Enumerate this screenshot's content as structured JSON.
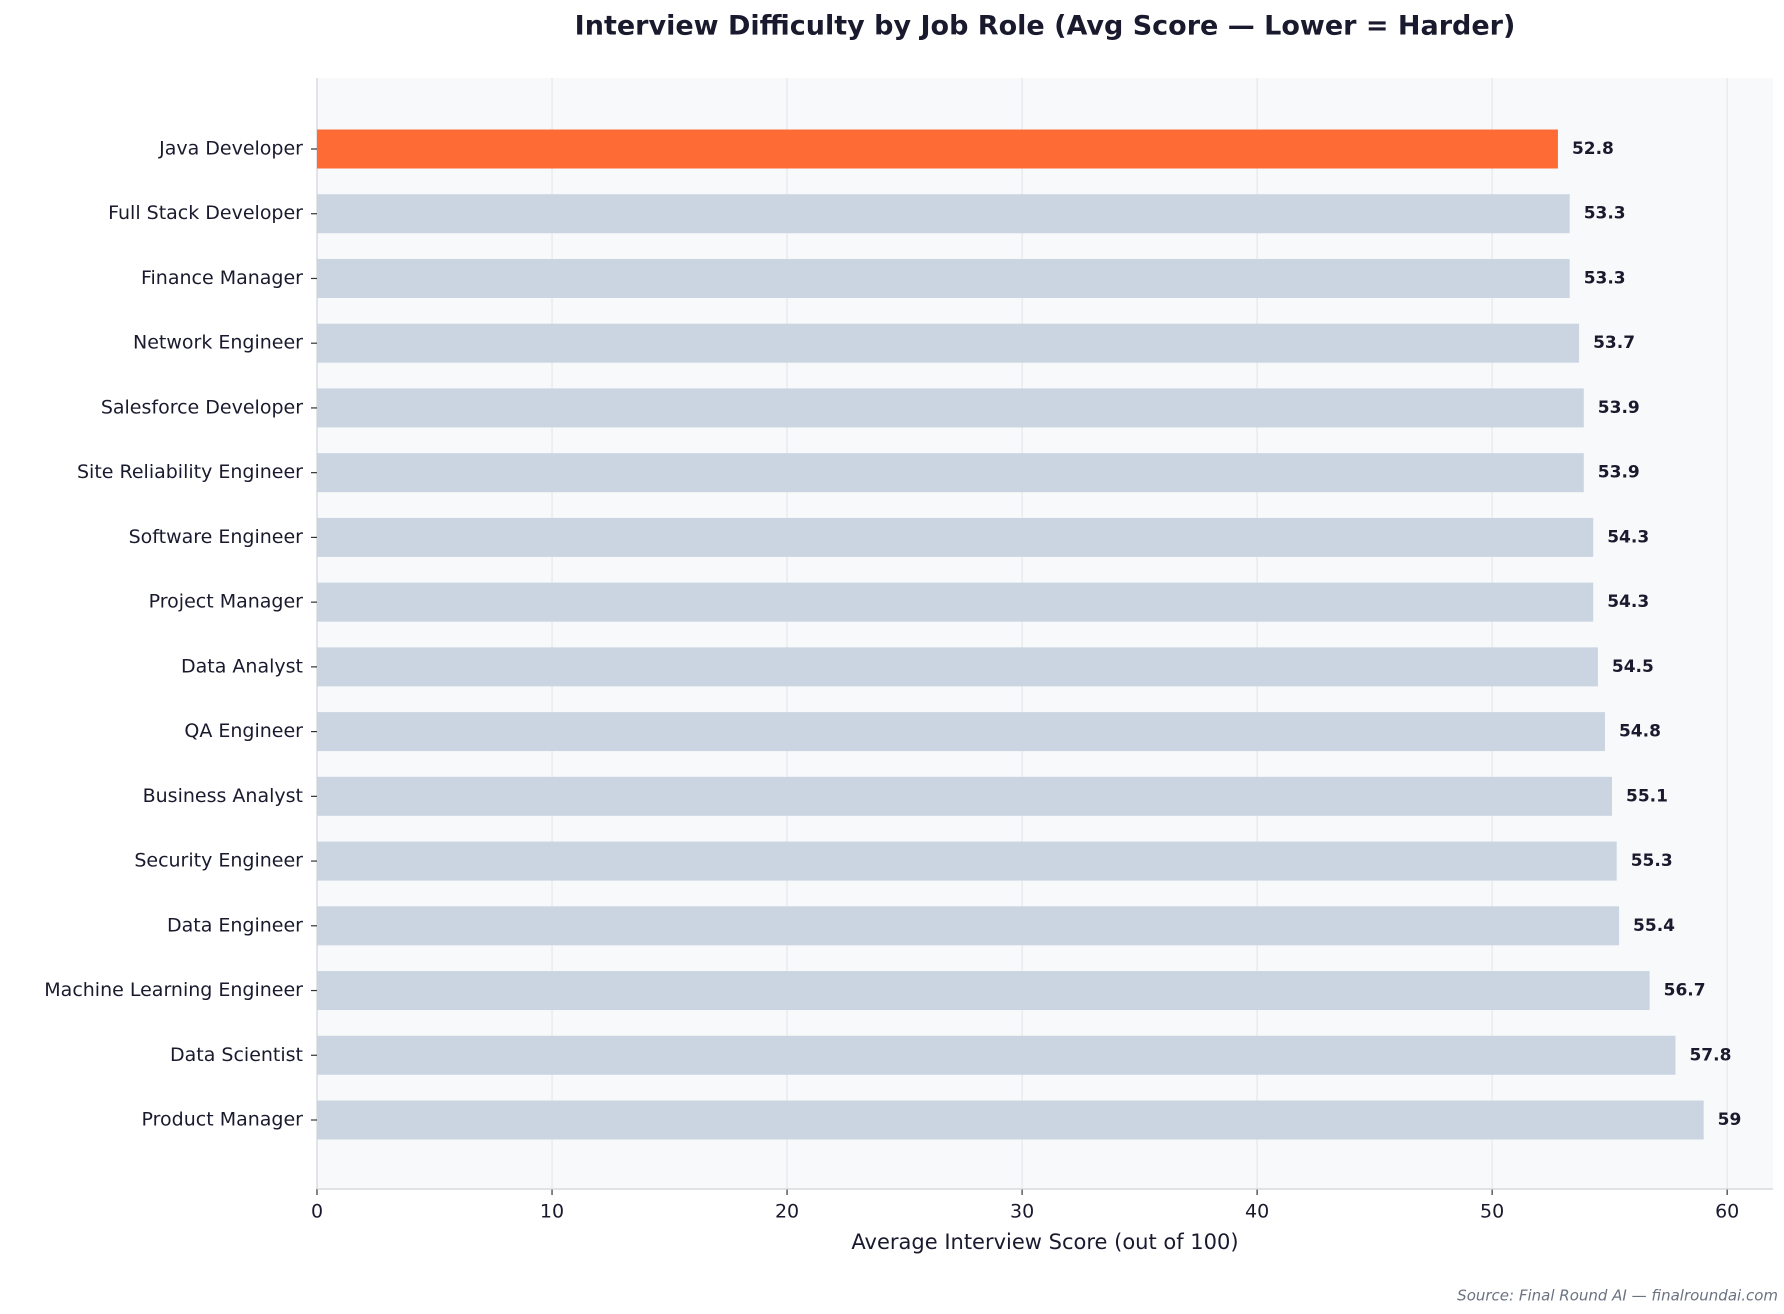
{
  "chart_data": {
    "type": "barh",
    "title": "Interview Difficulty by Job Role (Avg Score — Lower = Harder)",
    "xlabel": "Average Interview Score (out of 100)",
    "source": "Source: Final Round AI — finalroundai.com",
    "categories": [
      "Java Developer",
      "Full Stack Developer",
      "Finance Manager",
      "Network Engineer",
      "Salesforce Developer",
      "Site Reliability Engineer",
      "Software Engineer",
      "Project Manager",
      "Data Analyst",
      "QA Engineer",
      "Business Analyst",
      "Security Engineer",
      "Data Engineer",
      "Machine Learning Engineer",
      "Data Scientist",
      "Product Manager"
    ],
    "values": [
      52.8,
      53.3,
      53.3,
      53.7,
      53.9,
      53.9,
      54.3,
      54.3,
      54.5,
      54.8,
      55.1,
      55.3,
      55.4,
      56.7,
      57.8,
      59
    ],
    "colors": [
      "#ff6b35",
      "#cbd5e1",
      "#cbd5e1",
      "#cbd5e1",
      "#cbd5e1",
      "#cbd5e1",
      "#cbd5e1",
      "#cbd5e1",
      "#cbd5e1",
      "#cbd5e1",
      "#cbd5e1",
      "#cbd5e1",
      "#cbd5e1",
      "#cbd5e1",
      "#cbd5e1",
      "#cbd5e1"
    ],
    "xlim": [
      0,
      61.95
    ],
    "xticks": [
      0,
      10,
      20,
      30,
      40,
      50,
      60
    ],
    "grid": true
  }
}
